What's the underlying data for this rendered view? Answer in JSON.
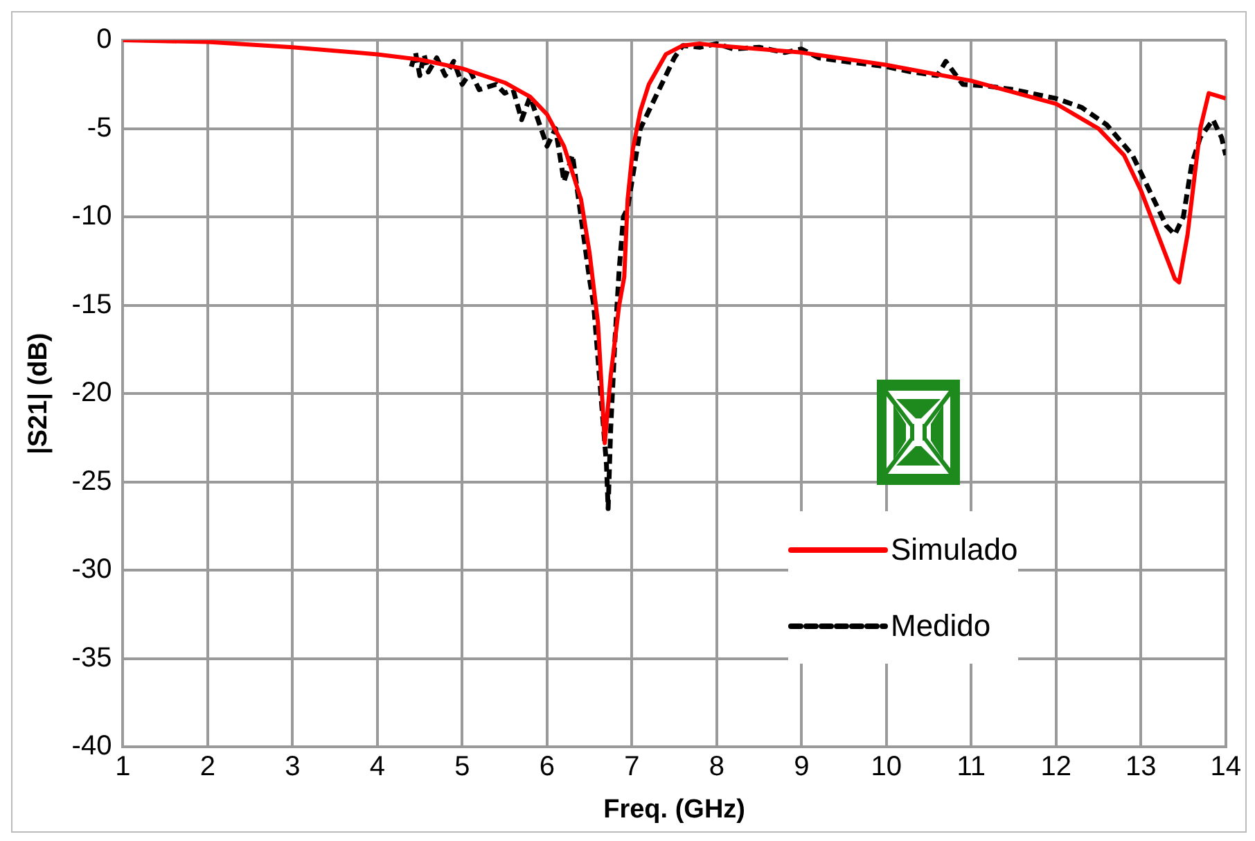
{
  "chart_data": {
    "type": "line",
    "xlabel": "Freq. (GHz)",
    "ylabel": "|S21| (dB)",
    "xlim": [
      1,
      14
    ],
    "xticks": [
      1,
      2,
      3,
      4,
      5,
      6,
      7,
      8,
      9,
      10,
      11,
      12,
      13,
      14
    ],
    "ylim": [
      -40,
      0
    ],
    "yticks": [
      -40,
      -35,
      -30,
      -25,
      -20,
      -15,
      -10,
      -5,
      0
    ],
    "grid": true,
    "legend": "bottom right",
    "marker": "none",
    "series": [
      {
        "name": "Simulado",
        "color": "#ff0000",
        "line_style": "solid",
        "x": [
          1,
          2,
          3,
          4,
          4.5,
          5,
          5.5,
          5.8,
          6,
          6.2,
          6.4,
          6.5,
          6.6,
          6.68,
          6.75,
          6.85,
          6.91,
          6.95,
          7.01,
          7.1,
          7.2,
          7.4,
          7.6,
          7.8,
          8,
          9,
          10,
          11,
          12,
          12.5,
          12.8,
          13,
          13.2,
          13.4,
          13.45,
          13.55,
          13.7,
          13.8,
          14
        ],
        "values": [
          0,
          -0.1,
          -0.4,
          -0.8,
          -1.1,
          -1.6,
          -2.4,
          -3.2,
          -4.2,
          -6,
          -9,
          -12,
          -16,
          -22.8,
          -19,
          -15,
          -13.4,
          -9,
          -6.2,
          -4,
          -2.5,
          -0.8,
          -0.3,
          -0.2,
          -0.3,
          -0.7,
          -1.4,
          -2.3,
          -3.6,
          -5,
          -6.5,
          -8.5,
          -11,
          -13.5,
          -13.7,
          -11,
          -5,
          -3,
          -3.3
        ]
      },
      {
        "name": "Medido",
        "color": "#000000",
        "line_style": "dashed",
        "x": [
          4.4,
          4.45,
          4.5,
          4.55,
          4.6,
          4.7,
          4.8,
          4.9,
          5,
          5.1,
          5.2,
          5.4,
          5.5,
          5.6,
          5.7,
          5.8,
          6,
          6.1,
          6.2,
          6.3,
          6.4,
          6.5,
          6.55,
          6.6,
          6.65,
          6.7,
          6.72,
          6.75,
          6.8,
          6.85,
          6.9,
          6.95,
          7,
          7.1,
          7.2,
          7.3,
          7.5,
          7.6,
          7.8,
          8,
          8.2,
          8.5,
          8.8,
          9,
          9.2,
          9.5,
          10,
          10.3,
          10.6,
          10.7,
          10.9,
          11.2,
          11.5,
          12,
          12.3,
          12.6,
          12.9,
          13.1,
          13.3,
          13.4,
          13.5,
          13.6,
          13.7,
          13.85,
          13.95,
          14
        ],
        "values": [
          -1.5,
          -0.7,
          -2,
          -0.8,
          -1.8,
          -1,
          -2,
          -1.2,
          -2.5,
          -1.8,
          -2.8,
          -2.5,
          -3,
          -2.8,
          -4.5,
          -3.2,
          -6,
          -5,
          -8,
          -6.5,
          -10,
          -13.5,
          -15,
          -18,
          -21,
          -24,
          -26.5,
          -22,
          -17,
          -13,
          -10,
          -9.5,
          -8,
          -5,
          -4,
          -3,
          -1,
          -0.3,
          -0.4,
          -0.2,
          -0.5,
          -0.4,
          -0.7,
          -0.5,
          -1,
          -1.2,
          -1.5,
          -1.8,
          -2,
          -1.2,
          -2.5,
          -2.6,
          -2.8,
          -3.3,
          -3.8,
          -4.8,
          -6.5,
          -8.5,
          -10.5,
          -11,
          -10,
          -7,
          -5.5,
          -4.5,
          -5.5,
          -6.5
        ]
      }
    ]
  }
}
